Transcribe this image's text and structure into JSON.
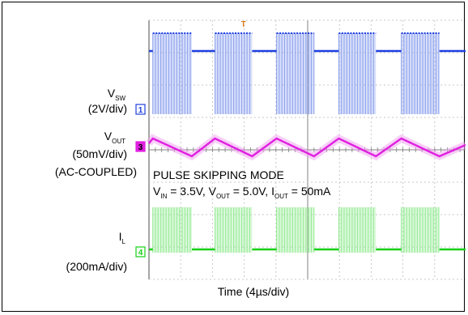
{
  "chart_data": {
    "type": "line",
    "title": "",
    "annotations": {
      "mode": "PULSE SKIPPING MODE",
      "vin_label": "IN",
      "vin_value": "= 3.5V,",
      "vout_label": "OUT",
      "vout_value": "= 5.0V,",
      "iout_label": "OUT",
      "iout_value": "= 50mA"
    },
    "xlabel": "Time (4µs/div)",
    "grid": true,
    "divisions": {
      "x": 10,
      "y": 8
    },
    "channels": [
      {
        "marker": "1",
        "name_main": "V",
        "name_sub": "SW",
        "scale": "(2V/div)",
        "coupling": "",
        "color": "#1e3fe0",
        "burst_color": "#8fa3ef",
        "pattern": "bursts"
      },
      {
        "marker": "3",
        "name_main": "V",
        "name_sub": "OUT",
        "scale": "(50mV/div)",
        "coupling": "(AC-COUPLED)",
        "color": "#e020e0",
        "burst_color": "#f0a0f0",
        "pattern": "sawtooth"
      },
      {
        "marker": "4",
        "name_main": "I",
        "name_sub": "L",
        "scale": "(200mA/div)",
        "coupling": "",
        "color": "#16d016",
        "burst_color": "#98ec98",
        "pattern": "bursts"
      }
    ],
    "bursts": [
      {
        "start_div": 0.12,
        "end_div": 1.35
      },
      {
        "start_div": 2.08,
        "end_div": 3.25
      },
      {
        "start_div": 4.02,
        "end_div": 5.2
      },
      {
        "start_div": 5.98,
        "end_div": 7.15
      },
      {
        "start_div": 7.95,
        "end_div": 9.15
      }
    ],
    "trigger_marker": "T"
  }
}
